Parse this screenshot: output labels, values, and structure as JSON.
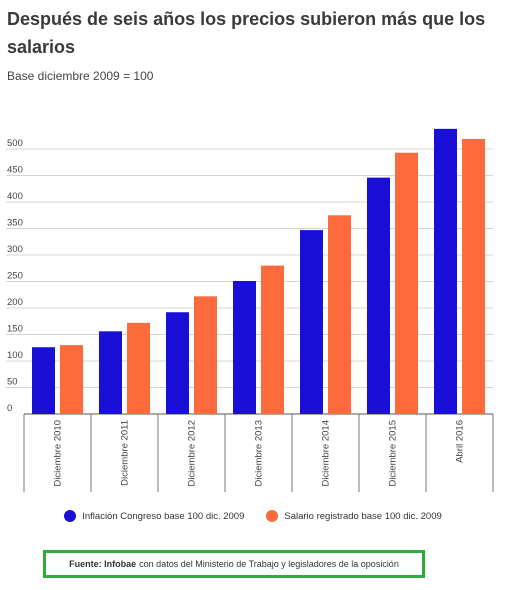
{
  "header": {
    "title": "Después de seis años los precios subieron más que los salarios",
    "subtitle": "Base diciembre 2009 = 100"
  },
  "chart_data": {
    "type": "bar",
    "categories": [
      "Diciembre 2010",
      "Diciembre 2011",
      "Diciembre 2012",
      "Diciembre 2013",
      "Diciembre 2014",
      "Diciembre 2015",
      "Abril 2016"
    ],
    "series": [
      {
        "name": "Inflación Congreso base 100 dic. 2009",
        "color": "#1a0fd6",
        "values": [
          126,
          156,
          192,
          251,
          347,
          446,
          538
        ]
      },
      {
        "name": "Salario registrado base 100 dic. 2009",
        "color": "#fd6b3d",
        "values": [
          130,
          172,
          222,
          280,
          375,
          493,
          519
        ]
      }
    ],
    "yticks": [
      0,
      50,
      100,
      150,
      200,
      250,
      300,
      350,
      400,
      450,
      500
    ],
    "ylim": [
      0,
      560
    ],
    "grid": true,
    "legend_position": "bottom"
  },
  "legend": {
    "items": [
      {
        "label": "Inflación Congreso base 100 dic. 2009",
        "color": "#1a0fd6"
      },
      {
        "label": "Salario registrado base 100 dic. 2009",
        "color": "#fd6b3d"
      }
    ]
  },
  "source": {
    "bold": "Fuente: Infobae",
    "text": "con datos del Ministerio de Trabajo y legisladores de la oposición"
  }
}
